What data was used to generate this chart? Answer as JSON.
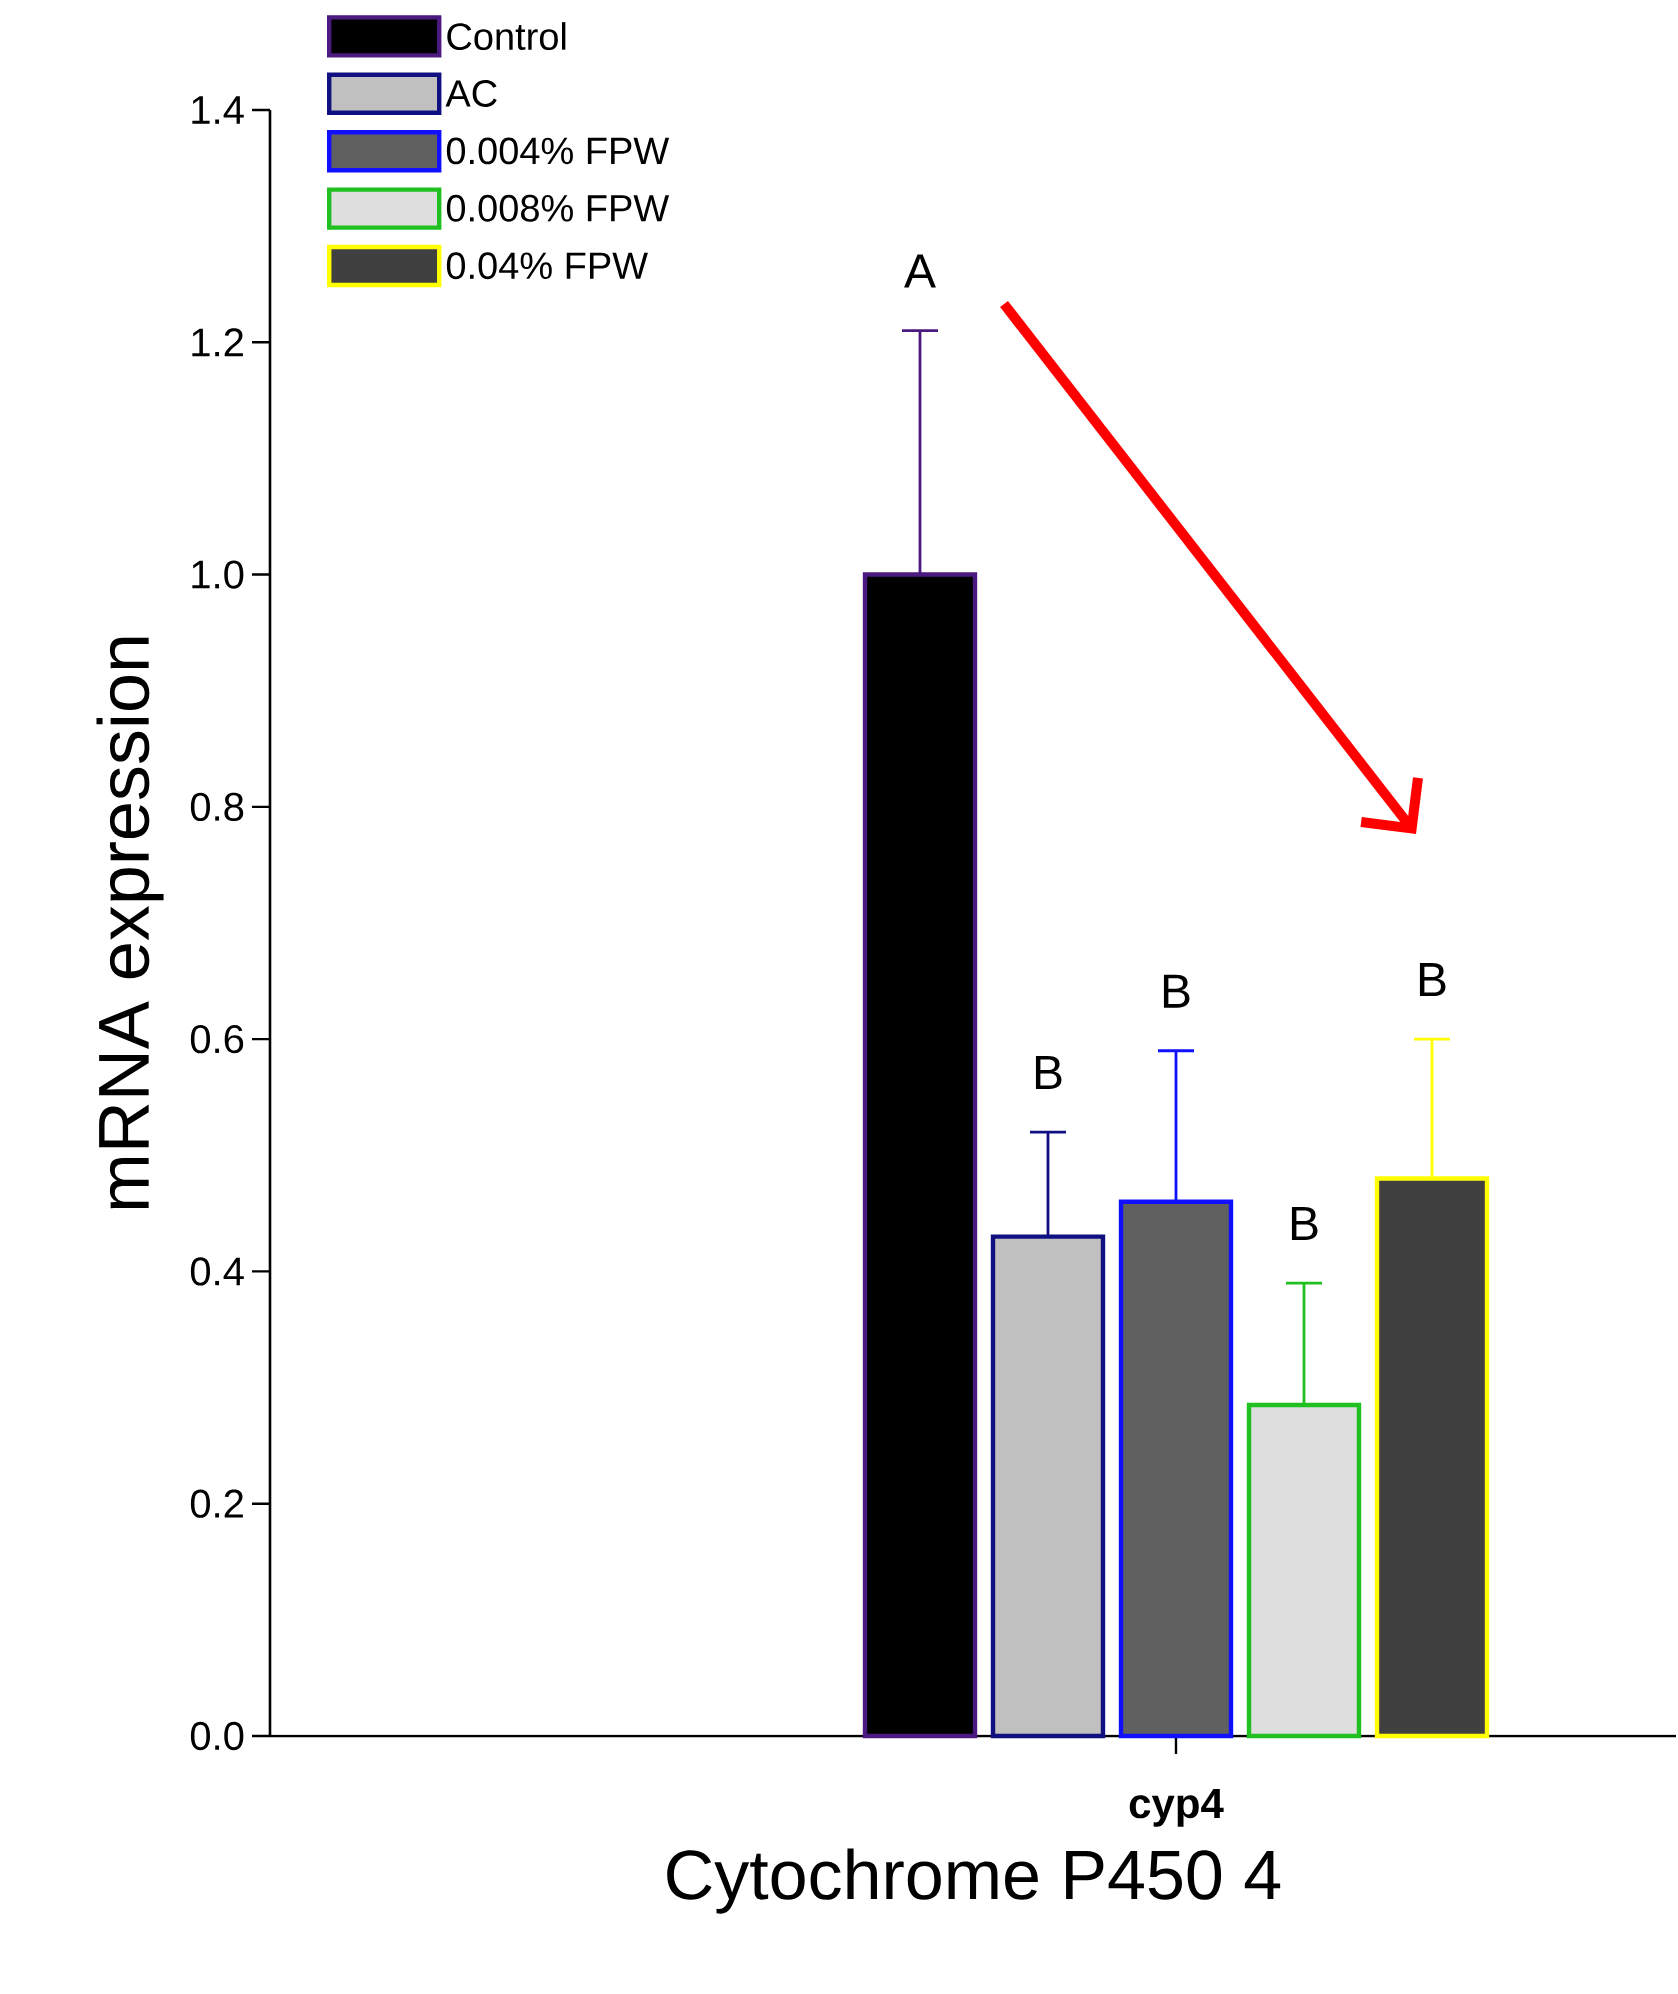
{
  "chart_data": {
    "type": "bar",
    "xlabel": "Cytochrome P450 4",
    "ylabel": "mRNA expression",
    "categories": [
      "cyp4"
    ],
    "series": [
      {
        "name": "Control",
        "color": "#000000",
        "values": [
          1.0
        ],
        "errors": [
          [
            1.0,
            1.21
          ]
        ]
      },
      {
        "name": "AC",
        "color": "#c0c0c0",
        "values": [
          0.43
        ],
        "errors": [
          [
            0.43,
            0.52
          ]
        ]
      },
      {
        "name": "0.004% FPW",
        "color": "#606060",
        "values": [
          0.46
        ],
        "errors": [
          [
            0.46,
            0.59
          ]
        ]
      },
      {
        "name": "0.008% FPW",
        "color": "#dedede",
        "values": [
          0.285
        ],
        "errors": [
          [
            0.285,
            0.39
          ]
        ]
      },
      {
        "name": "0.04% FPW",
        "color": "#404040",
        "values": [
          0.48
        ],
        "errors": [
          [
            0.48,
            0.6
          ]
        ]
      }
    ],
    "annotations": [
      "A",
      "B",
      "B",
      "B",
      "B"
    ],
    "ylim": [
      0,
      1.4
    ],
    "yticks": [
      {
        "value": 0,
        "label": "0.0"
      },
      0.2,
      0.4,
      0.6,
      0.8,
      {
        "value": 1,
        "label": "1.0"
      },
      1.2,
      1.4
    ],
    "grid": false,
    "legend": "top left"
  }
}
